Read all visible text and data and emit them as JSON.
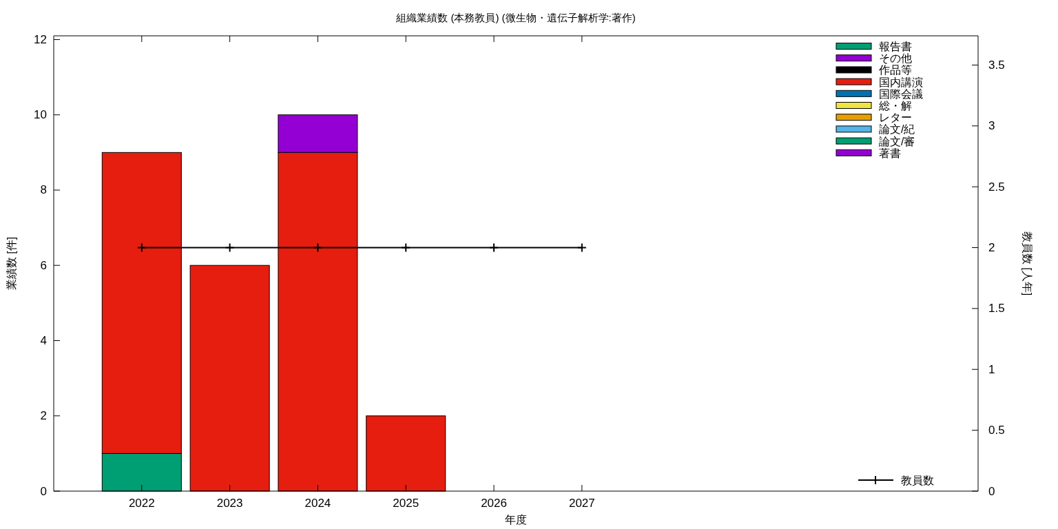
{
  "chart_data": {
    "type": "bar",
    "stacked": true,
    "title": "組織業績数 (本務教員) (微生物・遺伝子解析学:著作)",
    "xlabel": "年度",
    "ylabel": "業績数 [件]",
    "y2label": "教員数 [人年]",
    "x": [
      2022,
      2023,
      2024,
      2025,
      2026,
      2027
    ],
    "xlim": [
      2021,
      2031.5
    ],
    "xticks": [
      2022,
      2023,
      2024,
      2025,
      2026,
      2027
    ],
    "ylim": [
      0,
      12.1
    ],
    "yticks": [
      0,
      2,
      4,
      6,
      8,
      10,
      12
    ],
    "y2lim": [
      0,
      3.74
    ],
    "y2ticks": [
      0,
      0.5,
      1,
      1.5,
      2,
      2.5,
      3,
      3.5
    ],
    "legend": "top right",
    "grid": false,
    "series": [
      {
        "name": "著書",
        "color": "#9400d3",
        "values": [
          0,
          0,
          0,
          0,
          0,
          0
        ]
      },
      {
        "name": "論文/審",
        "color": "#009e73",
        "values": [
          1,
          0,
          0,
          0,
          0,
          0
        ]
      },
      {
        "name": "論文/紀",
        "color": "#56b4e9",
        "values": [
          0,
          0,
          0,
          0,
          0,
          0
        ]
      },
      {
        "name": "レター",
        "color": "#e69f00",
        "values": [
          0,
          0,
          0,
          0,
          0,
          0
        ]
      },
      {
        "name": "総・解",
        "color": "#f0e442",
        "values": [
          0,
          0,
          0,
          0,
          0,
          0
        ]
      },
      {
        "name": "国際会議",
        "color": "#0072b2",
        "values": [
          0,
          0,
          0,
          0,
          0,
          0
        ]
      },
      {
        "name": "国内講演",
        "color": "#e51e10",
        "values": [
          8,
          6,
          9,
          2,
          0,
          0
        ]
      },
      {
        "name": "作品等",
        "color": "#000000",
        "values": [
          0,
          0,
          0,
          0,
          0,
          0
        ]
      },
      {
        "name": "その他",
        "color": "#9400d3",
        "values": [
          0,
          0,
          1,
          0,
          0,
          0
        ]
      },
      {
        "name": "報告書",
        "color": "#009e73",
        "values": [
          0,
          0,
          0,
          0,
          0,
          0
        ]
      },
      {
        "name": "教員数",
        "type": "line",
        "axis": "y2",
        "marker": "cross",
        "color": "#000000",
        "values": [
          2,
          2,
          2,
          2,
          2,
          2
        ]
      }
    ]
  }
}
